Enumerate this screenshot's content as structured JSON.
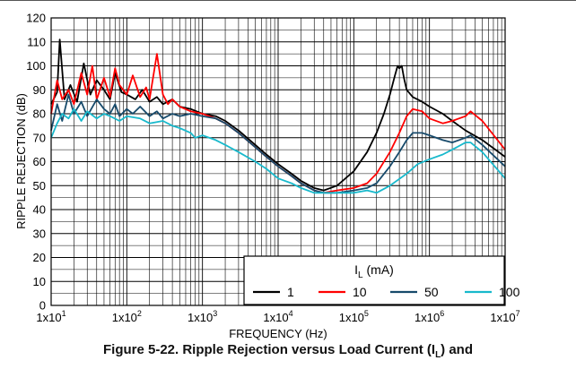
{
  "chart_data": {
    "type": "line",
    "title": "",
    "xlabel": "FREQUENCY (Hz)",
    "ylabel": "RIPPLE REJECTION (dB)",
    "x_scale": "log",
    "xlim": [
      10,
      10000000
    ],
    "ylim": [
      0,
      120
    ],
    "grid": true,
    "x_ticks": [
      {
        "mantissa": "1x10",
        "exp": "1"
      },
      {
        "mantissa": "1x10",
        "exp": "2"
      },
      {
        "mantissa": "1x10",
        "exp": "3"
      },
      {
        "mantissa": "1x10",
        "exp": "4"
      },
      {
        "mantissa": "1x10",
        "exp": "5"
      },
      {
        "mantissa": "1x10",
        "exp": "6"
      },
      {
        "mantissa": "1x10",
        "exp": "7"
      }
    ],
    "y_ticks": [
      "0",
      "10",
      "20",
      "30",
      "40",
      "50",
      "60",
      "70",
      "80",
      "90",
      "100",
      "110",
      "120"
    ],
    "legend": {
      "title_main": "I",
      "title_sub": "L",
      "title_unit": " (mA)",
      "placement": "bottom-right"
    },
    "series": [
      {
        "name": "1",
        "color": "#000000",
        "x": [
          10,
          12,
          13,
          15,
          18,
          22,
          27,
          33,
          40,
          50,
          60,
          70,
          85,
          100,
          130,
          160,
          200,
          250,
          300,
          400,
          500,
          700,
          1000,
          1500,
          2000,
          3000,
          5000,
          7000,
          10000,
          15000,
          20000,
          30000,
          40000,
          60000,
          100000,
          150000,
          200000,
          250000,
          300000,
          350000,
          380000,
          400000,
          430000,
          460000,
          500000,
          600000,
          800000,
          1000000,
          1500000,
          2000000,
          3000000,
          5000000,
          10000000
        ],
        "y": [
          84,
          89,
          111,
          86,
          92,
          85,
          101,
          88,
          94,
          90,
          86,
          97,
          89,
          88,
          86,
          90,
          85,
          87,
          84,
          86,
          83,
          82,
          80,
          79,
          77,
          73,
          67,
          63,
          59,
          55,
          52,
          49,
          48,
          50,
          56,
          64,
          72,
          80,
          88,
          96,
          100,
          99,
          100,
          95,
          90,
          87,
          85,
          83,
          80,
          77,
          73,
          69,
          62
        ]
      },
      {
        "name": "10",
        "color": "#ff0000",
        "x": [
          10,
          12,
          14,
          17,
          20,
          25,
          30,
          35,
          40,
          50,
          60,
          70,
          80,
          100,
          120,
          150,
          180,
          200,
          250,
          300,
          350,
          400,
          500,
          700,
          1000,
          1500,
          2000,
          3000,
          5000,
          7000,
          10000,
          15000,
          20000,
          30000,
          40000,
          60000,
          100000,
          150000,
          200000,
          300000,
          400000,
          500000,
          600000,
          800000,
          1000000,
          1500000,
          2000000,
          3000000,
          3500000,
          5000000,
          10000000
        ],
        "y": [
          80,
          94,
          86,
          90,
          84,
          97,
          88,
          100,
          86,
          95,
          87,
          99,
          92,
          88,
          96,
          87,
          91,
          86,
          105,
          88,
          84,
          86,
          83,
          81,
          80,
          78,
          76,
          72,
          66,
          62,
          58,
          54,
          51,
          48,
          47,
          48,
          49,
          51,
          55,
          64,
          72,
          79,
          82,
          81,
          78,
          76,
          77,
          79,
          81,
          77,
          65
        ]
      },
      {
        "name": "50",
        "color": "#174a6b",
        "x": [
          10,
          12,
          14,
          17,
          20,
          25,
          30,
          40,
          50,
          60,
          70,
          80,
          100,
          120,
          150,
          200,
          250,
          300,
          400,
          500,
          700,
          1000,
          1500,
          2000,
          3000,
          5000,
          7000,
          10000,
          15000,
          20000,
          30000,
          40000,
          60000,
          100000,
          150000,
          200000,
          300000,
          400000,
          500000,
          600000,
          800000,
          1000000,
          1500000,
          2000000,
          3000000,
          3500000,
          5000000,
          10000000
        ],
        "y": [
          73,
          84,
          77,
          88,
          80,
          85,
          79,
          86,
          82,
          80,
          84,
          79,
          82,
          80,
          83,
          79,
          81,
          78,
          80,
          79,
          80,
          79,
          78,
          76,
          72,
          66,
          62,
          58,
          54,
          51,
          48,
          47,
          47,
          48,
          49,
          51,
          58,
          64,
          69,
          72,
          72,
          71,
          69,
          68,
          70,
          71,
          67,
          58
        ]
      },
      {
        "name": "100",
        "color": "#18b9cc",
        "x": [
          10,
          12,
          14,
          17,
          20,
          25,
          30,
          40,
          50,
          60,
          80,
          100,
          150,
          200,
          300,
          400,
          500,
          700,
          800,
          1000,
          1500,
          2000,
          3000,
          5000,
          7000,
          10000,
          15000,
          20000,
          30000,
          50000,
          100000,
          150000,
          200000,
          300000,
          500000,
          700000,
          1000000,
          1500000,
          2000000,
          3000000,
          3500000,
          5000000,
          10000000
        ],
        "y": [
          70,
          76,
          80,
          78,
          82,
          77,
          81,
          78,
          80,
          79,
          77,
          79,
          78,
          76,
          77,
          75,
          74,
          72,
          70,
          71,
          69,
          67,
          64,
          60,
          57,
          53,
          51,
          49,
          47,
          47,
          47,
          48,
          47,
          50,
          55,
          59,
          61,
          63,
          65,
          68,
          68,
          64,
          53
        ]
      }
    ]
  },
  "caption": {
    "prefix": "Figure 5-22. Ripple Rejection versus Load Current (I",
    "sub": "L",
    "suffix": ") and"
  }
}
